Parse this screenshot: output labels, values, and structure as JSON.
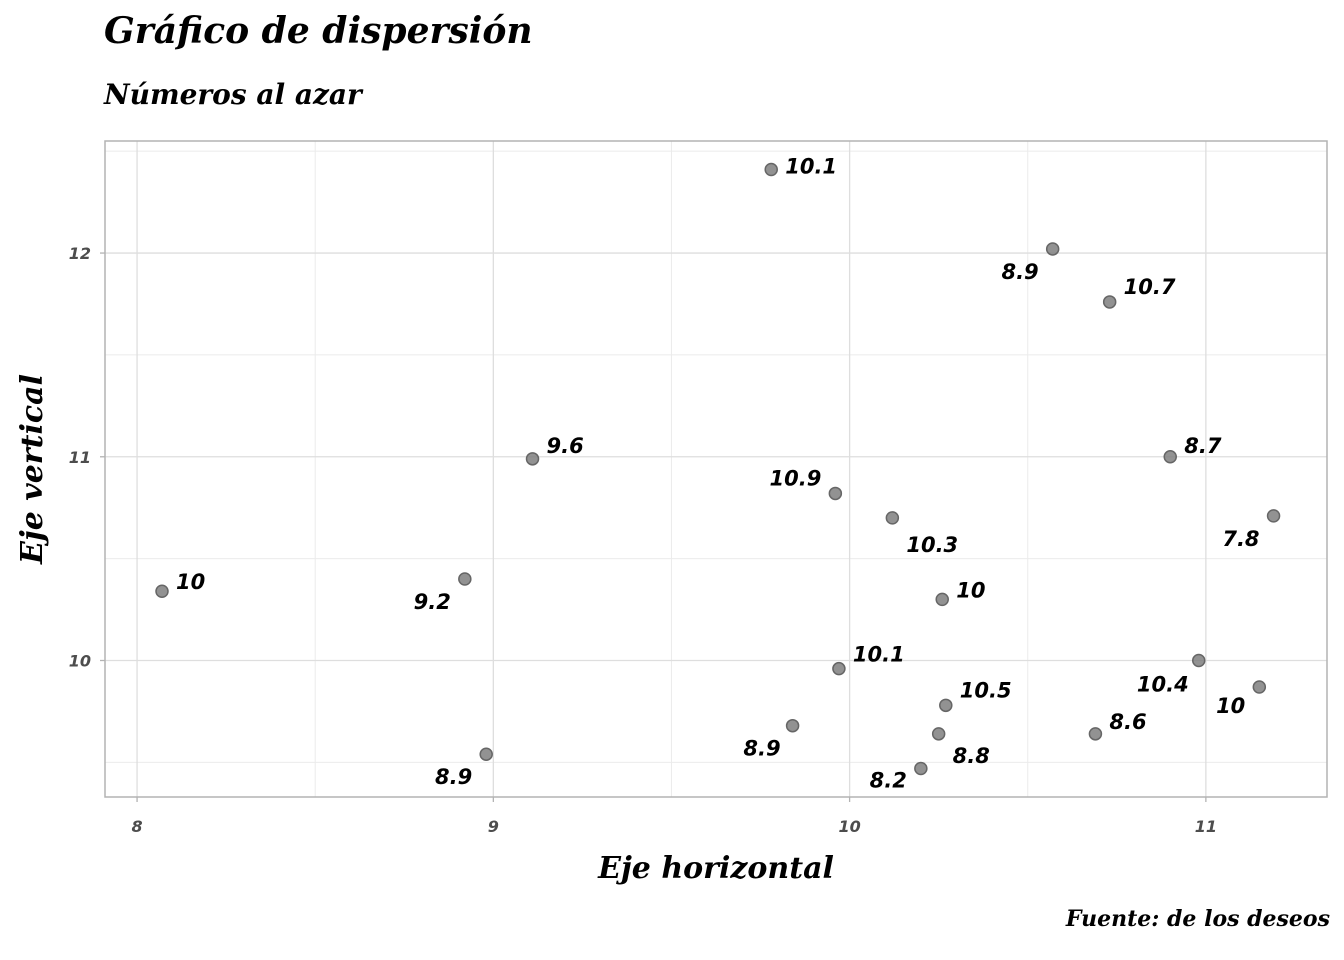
{
  "chart_data": {
    "type": "scatter",
    "title": "Gráfico de dispersión",
    "subtitle": "Números al azar",
    "xlabel": "Eje horizontal",
    "ylabel": "Eje vertical",
    "caption": "Fuente: de los deseos",
    "xlim": [
      7.91,
      11.34
    ],
    "ylim": [
      9.33,
      12.55
    ],
    "x_ticks": [
      "8",
      "9",
      "10",
      "11"
    ],
    "y_ticks": [
      "10",
      "11",
      "12"
    ],
    "grid": true,
    "point_color": "#7f7f7f",
    "points": [
      {
        "x": 9.78,
        "y": 12.41,
        "label": "10.1"
      },
      {
        "x": 10.57,
        "y": 12.02,
        "label": "8.9"
      },
      {
        "x": 10.73,
        "y": 11.76,
        "label": "10.7"
      },
      {
        "x": 9.11,
        "y": 10.99,
        "label": "9.6"
      },
      {
        "x": 10.9,
        "y": 11.0,
        "label": "8.7"
      },
      {
        "x": 9.96,
        "y": 10.82,
        "label": "10.9"
      },
      {
        "x": 10.12,
        "y": 10.7,
        "label": "10.3"
      },
      {
        "x": 11.19,
        "y": 10.71,
        "label": "7.8"
      },
      {
        "x": 8.07,
        "y": 10.34,
        "label": "10"
      },
      {
        "x": 8.92,
        "y": 10.4,
        "label": "9.2"
      },
      {
        "x": 10.26,
        "y": 10.3,
        "label": "10"
      },
      {
        "x": 9.97,
        "y": 9.96,
        "label": "10.1"
      },
      {
        "x": 10.98,
        "y": 10.0,
        "label": "10.4"
      },
      {
        "x": 11.15,
        "y": 9.87,
        "label": "10"
      },
      {
        "x": 10.27,
        "y": 9.78,
        "label": "10.5"
      },
      {
        "x": 9.84,
        "y": 9.68,
        "label": "8.9"
      },
      {
        "x": 10.69,
        "y": 9.64,
        "label": "8.6"
      },
      {
        "x": 10.25,
        "y": 9.64,
        "label": "8.8"
      },
      {
        "x": 8.98,
        "y": 9.54,
        "label": "8.9"
      },
      {
        "x": 10.2,
        "y": 9.47,
        "label": "8.2"
      }
    ]
  }
}
